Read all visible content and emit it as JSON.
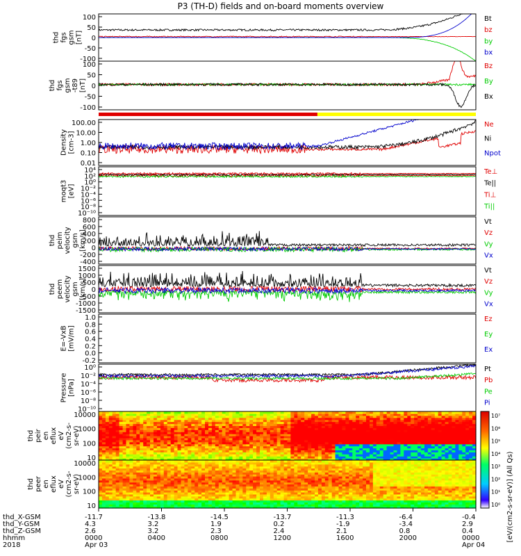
{
  "title": "P3 (TH-D) fields and on-board moments overview",
  "colors": {
    "black": "#000000",
    "red": "#e00000",
    "green": "#00cc00",
    "blue": "#0000cc",
    "yellow": "#ffff00"
  },
  "footer": {
    "row_labels": [
      "thd_X-GSM",
      "thd_Y-GSM",
      "thd_Z-GSM",
      "hhmm",
      "2018"
    ],
    "columns": [
      {
        "x": "-11.7",
        "y": "4.3",
        "z": "2.6",
        "t": "0000",
        "d": "Apr 03"
      },
      {
        "x": "-13.8",
        "y": "3.2",
        "z": "3.2",
        "t": "0400",
        "d": ""
      },
      {
        "x": "-14.5",
        "y": "1.9",
        "z": "2.3",
        "t": "0800",
        "d": ""
      },
      {
        "x": "-13.7",
        "y": "0.2",
        "z": "2.4",
        "t": "1200",
        "d": ""
      },
      {
        "x": "-11.3",
        "y": "-1.9",
        "z": "2.1",
        "t": "1600",
        "d": ""
      },
      {
        "x": "-6.4",
        "y": "-3.4",
        "z": "0.8",
        "t": "2000",
        "d": ""
      },
      {
        "x": "-0.4",
        "y": "2.9",
        "z": "0.4",
        "t": "0000",
        "d": "Apr 04"
      }
    ]
  },
  "colorbar": {
    "tick_labels": [
      "10⁷",
      "10⁶",
      "10⁵",
      "10⁴",
      "10³",
      "10²",
      "10¹",
      "10⁰"
    ],
    "label": "[eV/(cm2-s-sr-eV)] (All Qs)"
  },
  "chart_data": [
    {
      "type": "line",
      "name": "fgs",
      "ylabel": [
        "thd",
        "fgs",
        "gsm",
        "[nT]"
      ],
      "ylim": [
        -100,
        100
      ],
      "yticks": [
        "100",
        "50",
        "0",
        "-50",
        "-100"
      ],
      "series": [
        {
          "name": "Bt",
          "color": "#000000"
        },
        {
          "name": "bz",
          "color": "#e00000"
        },
        {
          "name": "by",
          "color": "#00cc00"
        },
        {
          "name": "bx",
          "color": "#0000cc"
        }
      ]
    },
    {
      "type": "line",
      "name": "fgs_t89",
      "ylabel": [
        "thd",
        "fgs",
        "gsm",
        "-t89",
        "[nT]"
      ],
      "ylim": [
        -120,
        100
      ],
      "yticks": [
        "100",
        "50",
        "0",
        "-50",
        "-100"
      ],
      "series": [
        {
          "name": "Bz",
          "color": "#e00000"
        },
        {
          "name": "By",
          "color": "#00cc00"
        },
        {
          "name": "Bx",
          "color": "#000000"
        }
      ]
    },
    {
      "type": "line",
      "name": "density",
      "ylabel": [
        "Density",
        "[cm-3]"
      ],
      "log": true,
      "ylim": [
        0.01,
        300
      ],
      "yticks": [
        "100.00",
        "10.00",
        "1.00",
        "0.10",
        "0.01"
      ],
      "series": [
        {
          "name": "Ne",
          "color": "#e00000"
        },
        {
          "name": "Ni",
          "color": "#000000"
        },
        {
          "name": "Npot",
          "color": "#0000cc"
        }
      ]
    },
    {
      "type": "line",
      "name": "temperature",
      "ylabel": [
        "moqt3",
        "[eV]"
      ],
      "log": true,
      "yticks": [
        "10⁴",
        "10²",
        "10⁰",
        "10⁻²",
        "10⁻⁴",
        "10⁻⁶",
        "10⁻⁸",
        "10⁻¹⁰"
      ],
      "series": [
        {
          "name": "Te⊥",
          "color": "#e00000"
        },
        {
          "name": "Te||",
          "color": "#000000"
        },
        {
          "name": "Ti⊥",
          "color": "#e00000"
        },
        {
          "name": "Ti||",
          "color": "#00cc00"
        }
      ]
    },
    {
      "type": "line",
      "name": "peim_velocity",
      "ylabel": [
        "thd",
        "peim",
        "velocity",
        "gsm",
        "[km/s]"
      ],
      "ylim": [
        -400,
        800
      ],
      "yticks": [
        "800",
        "600",
        "400",
        "200",
        "0",
        "-200",
        "-400"
      ],
      "series": [
        {
          "name": "Vt",
          "color": "#000000"
        },
        {
          "name": "Vz",
          "color": "#e00000"
        },
        {
          "name": "Vy",
          "color": "#00cc00"
        },
        {
          "name": "Vx",
          "color": "#0000cc"
        }
      ]
    },
    {
      "type": "line",
      "name": "peem_velocity",
      "ylabel": [
        "thd",
        "peem",
        "velocity",
        "gsm",
        "[km/s]"
      ],
      "ylim": [
        -1500,
        1500
      ],
      "yticks": [
        "1500",
        "1000",
        "500",
        "0",
        "-500",
        "-1000",
        "-1500"
      ],
      "series": [
        {
          "name": "Vt",
          "color": "#000000"
        },
        {
          "name": "Vz",
          "color": "#e00000"
        },
        {
          "name": "Vy",
          "color": "#00cc00"
        },
        {
          "name": "Vx",
          "color": "#0000cc"
        }
      ]
    },
    {
      "type": "line",
      "name": "efield",
      "ylabel": [
        "E=-VxB",
        "[mV/m]"
      ],
      "ylim": [
        -0.2,
        1.0
      ],
      "yticks": [
        "1.0",
        "0.8",
        "0.6",
        "0.4",
        "0.2",
        "0.0",
        "-0.2"
      ],
      "series": [
        {
          "name": "Ez",
          "color": "#e00000"
        },
        {
          "name": "Ey",
          "color": "#00cc00"
        },
        {
          "name": "Ex",
          "color": "#0000cc"
        }
      ]
    },
    {
      "type": "line",
      "name": "pressure",
      "ylabel": [
        "Pressure",
        "[nPa]"
      ],
      "log": true,
      "yticks": [
        "10⁰",
        "10⁻²",
        "10⁻⁴",
        "10⁻⁶",
        "10⁻⁸",
        "10⁻¹⁰"
      ],
      "series": [
        {
          "name": "Pt",
          "color": "#000000"
        },
        {
          "name": "Pb",
          "color": "#e00000"
        },
        {
          "name": "Pe",
          "color": "#00cc00"
        },
        {
          "name": "Pi",
          "color": "#0000cc"
        }
      ]
    },
    {
      "type": "heatmap",
      "name": "peir_eflux",
      "ylabel": [
        "thd",
        "peir",
        "en",
        "eflux",
        "eV",
        "(cm2-s-",
        "sr-eV)"
      ],
      "log": true,
      "yticks": [
        "10000",
        "1000",
        "100",
        "10"
      ]
    },
    {
      "type": "heatmap",
      "name": "peer_eflux",
      "ylabel": [
        "thd",
        "peer",
        "en",
        "eflux",
        "eV",
        "(cm2-s-",
        "sr-eV)"
      ],
      "log": true,
      "yticks": [
        "10000",
        "1000",
        "100",
        "10"
      ]
    }
  ]
}
